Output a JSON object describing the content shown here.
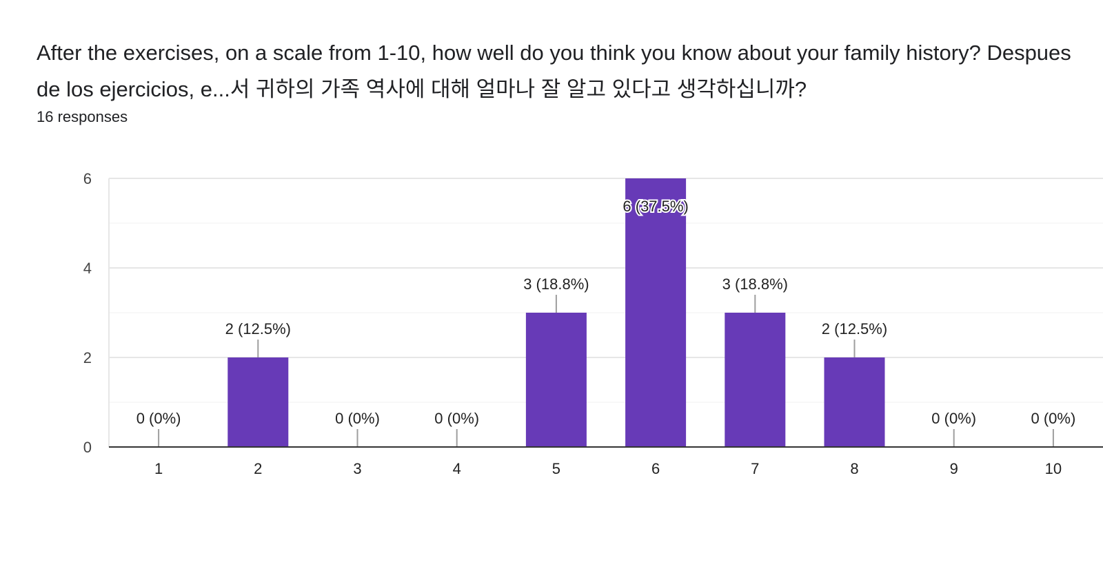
{
  "header": {
    "question": "After the exercises, on a scale from 1-10, how well do you think you know about your family history? Despues de los ejercicios, e...서 귀하의 가족 역사에 대해 얼마나 잘 알고 있다고 생각하십니까?",
    "responses": "16 responses"
  },
  "colors": {
    "bar": "#673ab7",
    "grid": "#e6e6e6",
    "axis": "#333333",
    "leader": "#9e9e9e"
  },
  "chart_data": {
    "type": "bar",
    "categories": [
      "1",
      "2",
      "3",
      "4",
      "5",
      "6",
      "7",
      "8",
      "9",
      "10"
    ],
    "values": [
      0,
      2,
      0,
      0,
      3,
      6,
      3,
      2,
      0,
      0
    ],
    "labels": [
      "0 (0%)",
      "2 (12.5%)",
      "0 (0%)",
      "0 (0%)",
      "3 (18.8%)",
      "6 (37.5%)",
      "3 (18.8%)",
      "2 (12.5%)",
      "0 (0%)",
      "0 (0%)"
    ],
    "yticks": [
      "0",
      "2",
      "4",
      "6"
    ],
    "ylim": [
      0,
      6
    ],
    "grid": true
  }
}
